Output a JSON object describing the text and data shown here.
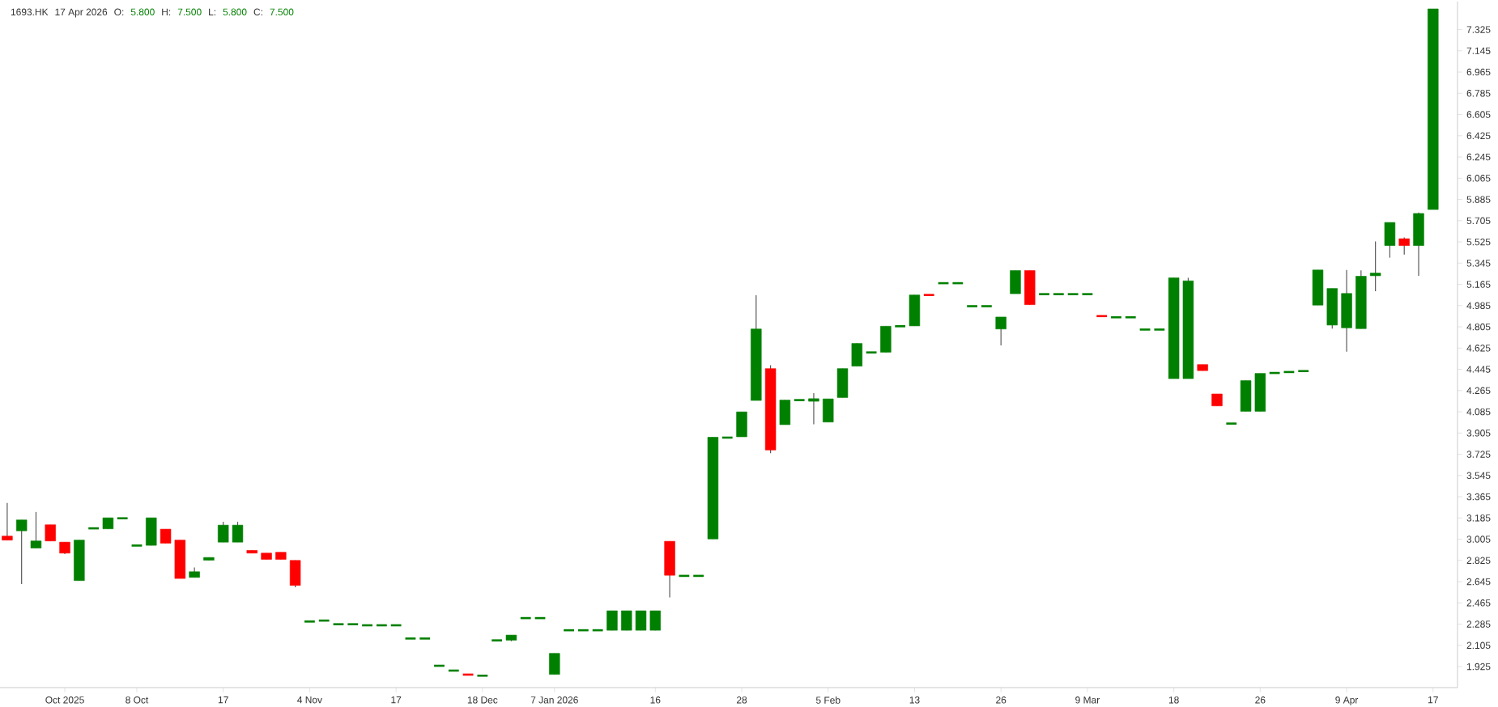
{
  "chart_data": {
    "type": "candlestick",
    "title": "1693.HK",
    "annotations": [
      "17 Apr 2026",
      "O:",
      "5.800",
      "H:",
      "7.500",
      "L:",
      "5.800",
      "C:",
      "7.500"
    ],
    "categories": [
      null,
      null,
      null,
      null,
      "Oct 2025",
      null,
      null,
      null,
      null,
      "8 Oct",
      null,
      null,
      null,
      null,
      null,
      "17",
      null,
      null,
      null,
      null,
      null,
      "4 Nov",
      null,
      null,
      null,
      null,
      null,
      "17",
      null,
      null,
      null,
      null,
      null,
      "18 Dec",
      null,
      null,
      null,
      null,
      "7 Jan 2026",
      null,
      null,
      null,
      null,
      null,
      null,
      "16",
      null,
      null,
      null,
      null,
      null,
      "28",
      null,
      null,
      null,
      null,
      null,
      "5 Feb",
      null,
      null,
      null,
      null,
      null,
      "13",
      null,
      null,
      null,
      null,
      null,
      "26",
      null,
      null,
      null,
      null,
      null,
      "9 Mar",
      null,
      null,
      null,
      null,
      null,
      "18",
      null,
      null,
      null,
      null,
      null,
      "26",
      null,
      null,
      null,
      null,
      null,
      "9 Apr",
      null,
      null,
      null,
      null,
      null,
      "17"
    ],
    "ohlc": [
      [
        3.031,
        3.312,
        2.997,
        2.997
      ],
      [
        3.076,
        3.168,
        2.624,
        3.168
      ],
      [
        2.93,
        3.236,
        2.93,
        2.99
      ],
      [
        3.127,
        3.127,
        2.99,
        2.99
      ],
      [
        2.98,
        2.98,
        2.878,
        2.887
      ],
      [
        2.654,
        2.997,
        2.654,
        2.997
      ],
      [
        3.097,
        3.097,
        3.097,
        3.097
      ],
      [
        3.093,
        3.186,
        3.093,
        3.186
      ],
      [
        3.182,
        3.182,
        3.182,
        3.182
      ],
      [
        2.951,
        2.951,
        2.951,
        2.951
      ],
      [
        2.953,
        3.186,
        2.953,
        3.186
      ],
      [
        3.09,
        3.09,
        2.971,
        2.971
      ],
      [
        2.997,
        2.997,
        2.672,
        2.672
      ],
      [
        2.681,
        2.766,
        2.681,
        2.729
      ],
      [
        2.827,
        2.85,
        2.827,
        2.85
      ],
      [
        2.98,
        3.152,
        2.98,
        3.124
      ],
      [
        2.98,
        3.152,
        2.98,
        3.124
      ],
      [
        2.91,
        2.91,
        2.887,
        2.887
      ],
      [
        2.887,
        2.887,
        2.834,
        2.834
      ],
      [
        2.894,
        2.894,
        2.834,
        2.834
      ],
      [
        2.825,
        2.825,
        2.597,
        2.613
      ],
      [
        2.307,
        2.307,
        2.307,
        2.307
      ],
      [
        2.315,
        2.315,
        2.315,
        2.315
      ],
      [
        2.284,
        2.284,
        2.284,
        2.284
      ],
      [
        2.284,
        2.284,
        2.284,
        2.284
      ],
      [
        2.275,
        2.275,
        2.275,
        2.275
      ],
      [
        2.275,
        2.275,
        2.275,
        2.275
      ],
      [
        2.275,
        2.275,
        2.275,
        2.275
      ],
      [
        2.163,
        2.163,
        2.163,
        2.163
      ],
      [
        2.163,
        2.163,
        2.163,
        2.163
      ],
      [
        1.932,
        1.932,
        1.932,
        1.932
      ],
      [
        1.891,
        1.891,
        1.891,
        1.891
      ],
      [
        1.857,
        1.857,
        1.857,
        1.857
      ],
      [
        1.848,
        1.848,
        1.848,
        1.848
      ],
      [
        2.147,
        2.147,
        2.147,
        2.147
      ],
      [
        2.149,
        2.192,
        2.14,
        2.192
      ],
      [
        2.336,
        2.336,
        2.336,
        2.336
      ],
      [
        2.336,
        2.336,
        2.336,
        2.336
      ],
      [
        1.859,
        2.037,
        1.859,
        2.037
      ],
      [
        2.233,
        2.233,
        2.233,
        2.233
      ],
      [
        2.233,
        2.233,
        2.233,
        2.233
      ],
      [
        2.233,
        2.233,
        2.233,
        2.233
      ],
      [
        2.233,
        2.398,
        2.233,
        2.398
      ],
      [
        2.233,
        2.398,
        2.233,
        2.398
      ],
      [
        2.233,
        2.398,
        2.233,
        2.398
      ],
      [
        2.233,
        2.398,
        2.233,
        2.398
      ],
      [
        2.987,
        2.987,
        2.512,
        2.699
      ],
      [
        2.694,
        2.694,
        2.694,
        2.694
      ],
      [
        2.694,
        2.694,
        2.694,
        2.694
      ],
      [
        3.007,
        3.869,
        3.007,
        3.869
      ],
      [
        3.866,
        3.866,
        3.866,
        3.866
      ],
      [
        3.873,
        4.084,
        3.873,
        4.084
      ],
      [
        4.181,
        5.072,
        4.181,
        4.787
      ],
      [
        4.451,
        4.48,
        3.734,
        3.761
      ],
      [
        3.976,
        4.184,
        3.976,
        4.184
      ],
      [
        4.184,
        4.184,
        4.184,
        4.184
      ],
      [
        4.174,
        4.243,
        3.979,
        4.196
      ],
      [
        3.998,
        4.194,
        3.998,
        4.194
      ],
      [
        4.206,
        4.451,
        4.206,
        4.451
      ],
      [
        4.472,
        4.664,
        4.472,
        4.664
      ],
      [
        4.588,
        4.588,
        4.588,
        4.588
      ],
      [
        4.59,
        4.81,
        4.59,
        4.81
      ],
      [
        4.81,
        4.81,
        4.81,
        4.81
      ],
      [
        4.813,
        5.075,
        4.813,
        5.075
      ],
      [
        5.075,
        5.075,
        5.075,
        5.075
      ],
      [
        5.175,
        5.175,
        5.175,
        5.175
      ],
      [
        5.175,
        5.175,
        5.175,
        5.175
      ],
      [
        4.98,
        4.98,
        4.98,
        4.98
      ],
      [
        4.98,
        4.98,
        4.98,
        4.98
      ],
      [
        4.787,
        4.888,
        4.647,
        4.888
      ],
      [
        5.086,
        5.282,
        5.086,
        5.282
      ],
      [
        5.282,
        5.282,
        4.993,
        4.993
      ],
      [
        5.082,
        5.082,
        5.082,
        5.082
      ],
      [
        5.082,
        5.082,
        5.082,
        5.082
      ],
      [
        5.082,
        5.082,
        5.082,
        5.082
      ],
      [
        5.082,
        5.082,
        5.082,
        5.082
      ],
      [
        4.896,
        4.896,
        4.896,
        4.896
      ],
      [
        4.886,
        4.886,
        4.886,
        4.886
      ],
      [
        4.886,
        4.886,
        4.886,
        4.886
      ],
      [
        4.782,
        4.782,
        4.782,
        4.782
      ],
      [
        4.782,
        4.782,
        4.782,
        4.782
      ],
      [
        4.366,
        5.221,
        4.366,
        5.221
      ],
      [
        4.366,
        5.221,
        4.366,
        5.195
      ],
      [
        4.485,
        4.485,
        4.434,
        4.434
      ],
      [
        4.236,
        4.236,
        4.135,
        4.135
      ],
      [
        3.985,
        3.985,
        3.985,
        3.985
      ],
      [
        4.089,
        4.349,
        4.089,
        4.349
      ],
      [
        4.089,
        4.41,
        4.089,
        4.41
      ],
      [
        4.414,
        4.414,
        4.414,
        4.414
      ],
      [
        4.422,
        4.422,
        4.422,
        4.422
      ],
      [
        4.43,
        4.43,
        4.43,
        4.43
      ],
      [
        4.989,
        5.287,
        4.989,
        5.287
      ],
      [
        4.82,
        5.13,
        4.79,
        5.13
      ],
      [
        4.797,
        5.287,
        4.594,
        5.088
      ],
      [
        4.79,
        5.284,
        4.79,
        5.234
      ],
      [
        5.238,
        5.529,
        5.107,
        5.261
      ],
      [
        5.494,
        5.69,
        5.391,
        5.69
      ],
      [
        5.552,
        5.563,
        5.418,
        5.494
      ],
      [
        5.494,
        5.774,
        5.238,
        5.766
      ],
      [
        5.8,
        7.5,
        5.8,
        7.5
      ]
    ],
    "colors": [
      "#ff0000",
      "#008000",
      "#008000",
      "#ff0000",
      "#ff0000",
      "#008000",
      "#008000",
      "#008000",
      "#008000",
      "#008000",
      "#008000",
      "#ff0000",
      "#ff0000",
      "#008000",
      "#008000",
      "#008000",
      "#008000",
      "#ff0000",
      "#ff0000",
      "#ff0000",
      "#ff0000",
      "#008000",
      "#008000",
      "#008000",
      "#008000",
      "#008000",
      "#008000",
      "#008000",
      "#008000",
      "#008000",
      "#008000",
      "#008000",
      "#ff0000",
      "#008000",
      "#008000",
      "#008000",
      "#008000",
      "#008000",
      "#008000",
      "#008000",
      "#008000",
      "#008000",
      "#008000",
      "#008000",
      "#008000",
      "#008000",
      "#ff0000",
      "#008000",
      "#008000",
      "#008000",
      "#008000",
      "#008000",
      "#008000",
      "#ff0000",
      "#008000",
      "#008000",
      "#008000",
      "#008000",
      "#008000",
      "#008000",
      "#008000",
      "#008000",
      "#008000",
      "#008000",
      "#ff0000",
      "#008000",
      "#008000",
      "#008000",
      "#008000",
      "#008000",
      "#008000",
      "#ff0000",
      "#008000",
      "#008000",
      "#008000",
      "#008000",
      "#ff0000",
      "#008000",
      "#008000",
      "#008000",
      "#008000",
      "#008000",
      "#008000",
      "#ff0000",
      "#ff0000",
      "#008000",
      "#008000",
      "#008000",
      "#008000",
      "#008000",
      "#008000",
      "#008000",
      "#008000",
      "#008000",
      "#008000",
      "#008000",
      "#008000",
      "#ff0000",
      "#008000",
      "#008000"
    ],
    "ylim": [
      1.747,
      7.562
    ],
    "yticks": [
      1.925,
      2.105,
      2.285,
      2.465,
      2.645,
      2.825,
      3.005,
      3.185,
      3.365,
      3.545,
      3.725,
      3.905,
      4.085,
      4.265,
      4.445,
      4.625,
      4.805,
      4.985,
      5.165,
      5.345,
      5.525,
      5.705,
      5.885,
      6.065,
      6.245,
      6.425,
      6.605,
      6.785,
      6.965,
      7.145,
      7.325
    ]
  }
}
